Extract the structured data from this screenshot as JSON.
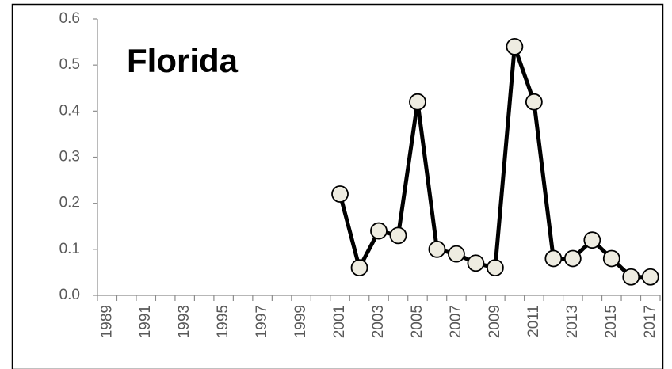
{
  "chart_data": {
    "type": "line",
    "title": "Florida",
    "categories": [
      "1989",
      null,
      "1991",
      null,
      "1993",
      null,
      "1995",
      null,
      "1997",
      null,
      "1999",
      null,
      "2001",
      null,
      "2003",
      null,
      "2005",
      null,
      "2007",
      null,
      "2009",
      null,
      "2011",
      null,
      "2013",
      null,
      "2015",
      null,
      "2017"
    ],
    "values": [
      null,
      null,
      null,
      null,
      null,
      null,
      null,
      null,
      null,
      null,
      null,
      null,
      0.22,
      0.06,
      0.14,
      0.13,
      0.42,
      0.1,
      0.09,
      0.07,
      0.06,
      0.54,
      0.42,
      0.08,
      0.08,
      0.12,
      0.08,
      0.04,
      0.04
    ],
    "color": "#000000",
    "marker_color": "#eeece1",
    "ylim": [
      0,
      0.6
    ],
    "yticks": [
      {
        "value": 0,
        "label": "0.0"
      },
      0.1,
      0.2,
      0.3,
      0.4,
      0.5,
      0.6
    ],
    "grid": false
  }
}
